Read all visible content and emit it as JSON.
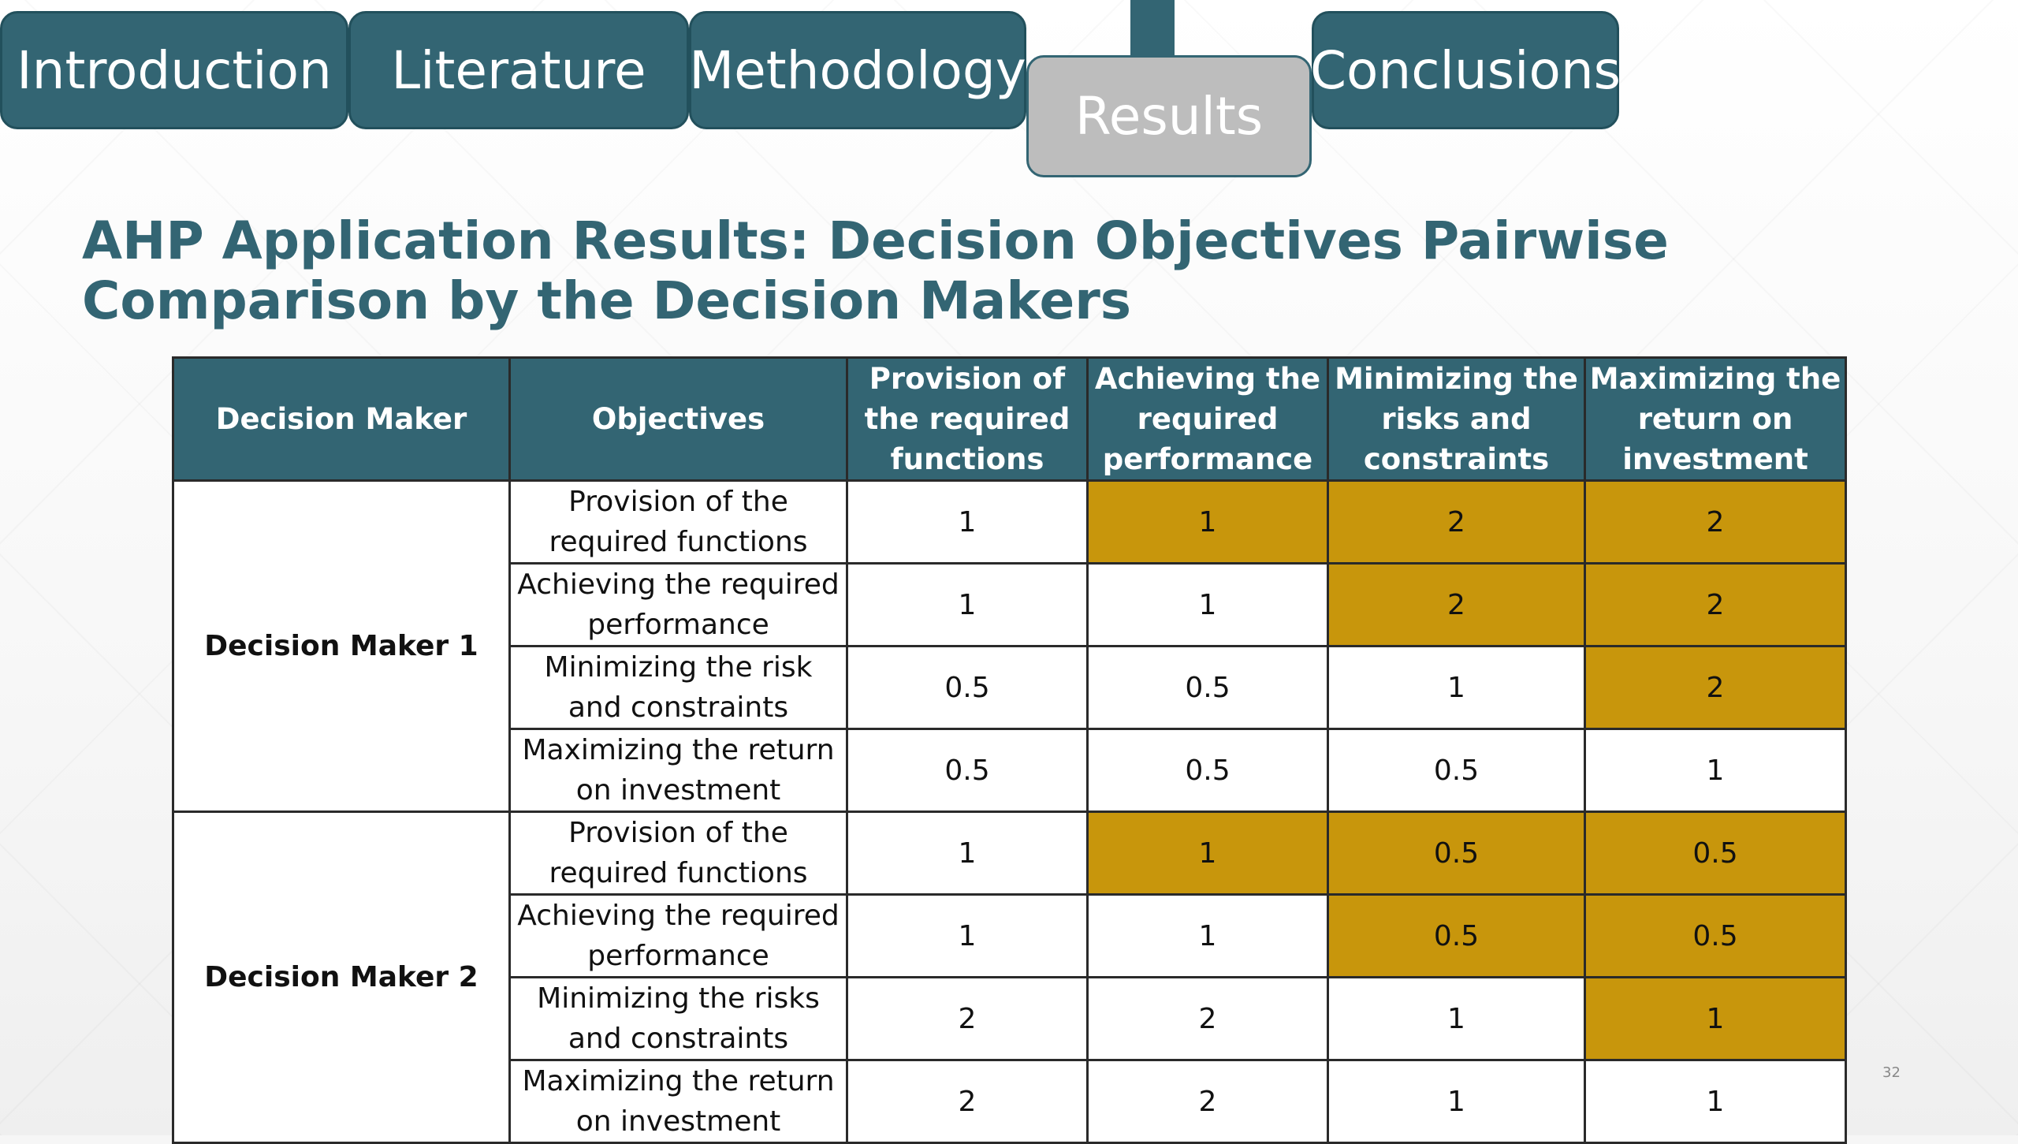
{
  "tabs": [
    {
      "label": "Introduction",
      "active": false
    },
    {
      "label": "Literature",
      "active": false
    },
    {
      "label": "Methodology",
      "active": false
    },
    {
      "label": "Results",
      "active": true
    },
    {
      "label": "Conclusions",
      "active": false
    }
  ],
  "title": "AHP Application Results: Decision Objectives Pairwise Comparison by the Decision Makers",
  "table": {
    "headers": [
      "Decision Maker",
      "Objectives",
      "Provision of the required functions",
      "Achieving the required performance",
      "Minimizing the risks and constraints",
      "Maximizing the return on investment"
    ],
    "groups": [
      {
        "decision_maker": "Decision Maker 1",
        "rows": [
          {
            "objective": "Provision of the required functions",
            "values": [
              "1",
              "1",
              "2",
              "2"
            ]
          },
          {
            "objective": "Achieving the required performance",
            "values": [
              "1",
              "1",
              "2",
              "2"
            ]
          },
          {
            "objective": "Minimizing the risk and constraints",
            "values": [
              "0.5",
              "0.5",
              "1",
              "2"
            ]
          },
          {
            "objective": "Maximizing the return on investment",
            "values": [
              "0.5",
              "0.5",
              "0.5",
              "1"
            ]
          }
        ]
      },
      {
        "decision_maker": "Decision Maker 2",
        "rows": [
          {
            "objective": "Provision of the required functions",
            "values": [
              "1",
              "1",
              "0.5",
              "0.5"
            ]
          },
          {
            "objective": "Achieving the required performance",
            "values": [
              "1",
              "1",
              "0.5",
              "0.5"
            ]
          },
          {
            "objective": "Minimizing the risks and constraints",
            "values": [
              "2",
              "2",
              "1",
              "1"
            ]
          },
          {
            "objective": "Maximizing the return on investment",
            "values": [
              "2",
              "2",
              "1",
              "1"
            ]
          }
        ]
      }
    ]
  },
  "colors": {
    "header_bg": "#336573",
    "highlight": "#c8960c",
    "tab_active_bg": "#bdbdbd",
    "title": "#336573"
  },
  "page_number": "32"
}
